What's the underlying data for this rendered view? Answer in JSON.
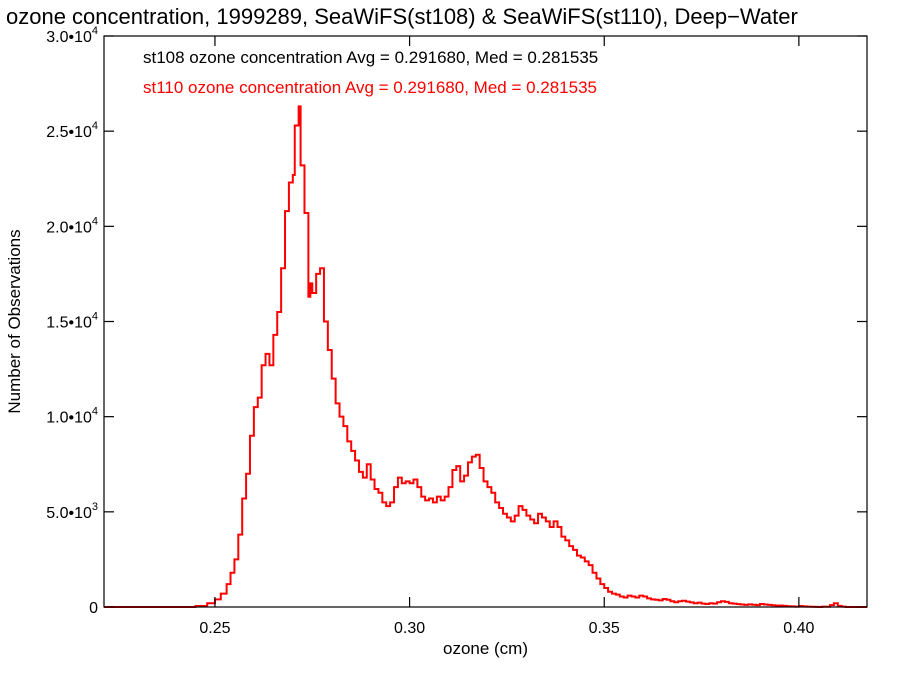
{
  "chart_data": {
    "type": "line",
    "title": "ozone concentration, 1999289, SeaWiFS(st108) & SeaWiFS(st110), Deep−Water",
    "xlabel": "ozone (cm)",
    "ylabel": "Number of Observations",
    "xlim": [
      0.2215,
      0.4175
    ],
    "ylim": [
      0,
      30000
    ],
    "x_ticks": [
      {
        "value": 0.25,
        "label": "0.25"
      },
      {
        "value": 0.3,
        "label": "0.30"
      },
      {
        "value": 0.35,
        "label": "0.35"
      },
      {
        "value": 0.4,
        "label": "0.40"
      }
    ],
    "y_ticks": [
      {
        "value": 0,
        "mantissa": "0",
        "exponent": ""
      },
      {
        "value": 5000,
        "mantissa": "5.0•10",
        "exponent": "3"
      },
      {
        "value": 10000,
        "mantissa": "1.0•10",
        "exponent": "4"
      },
      {
        "value": 15000,
        "mantissa": "1.5•10",
        "exponent": "4"
      },
      {
        "value": 20000,
        "mantissa": "2.0•10",
        "exponent": "4"
      },
      {
        "value": 25000,
        "mantissa": "2.5•10",
        "exponent": "4"
      },
      {
        "value": 30000,
        "mantissa": "3.0•10",
        "exponent": "4"
      }
    ],
    "annotations": [
      {
        "text": "st108 ozone concentration Avg = 0.291680, Med = 0.281535",
        "color": "#000000"
      },
      {
        "text": "st110 ozone concentration Avg = 0.291680, Med = 0.281535",
        "color": "#ff0000"
      }
    ],
    "series": [
      {
        "color": "#ff0000",
        "step": true,
        "points": [
          [
            0.2215,
            0
          ],
          [
            0.235,
            0
          ],
          [
            0.245,
            50
          ],
          [
            0.248,
            200
          ],
          [
            0.25,
            400
          ],
          [
            0.2515,
            700
          ],
          [
            0.253,
            1200
          ],
          [
            0.254,
            1800
          ],
          [
            0.255,
            2500
          ],
          [
            0.256,
            3800
          ],
          [
            0.257,
            5700
          ],
          [
            0.258,
            7000
          ],
          [
            0.259,
            9000
          ],
          [
            0.26,
            10500
          ],
          [
            0.261,
            11000
          ],
          [
            0.262,
            12700
          ],
          [
            0.263,
            13300
          ],
          [
            0.264,
            12700
          ],
          [
            0.265,
            14300
          ],
          [
            0.266,
            15500
          ],
          [
            0.267,
            17800
          ],
          [
            0.268,
            20800
          ],
          [
            0.269,
            22300
          ],
          [
            0.27,
            22700
          ],
          [
            0.2705,
            25300
          ],
          [
            0.2715,
            26300
          ],
          [
            0.272,
            23200
          ],
          [
            0.273,
            20700
          ],
          [
            0.274,
            16300
          ],
          [
            0.2745,
            17000
          ],
          [
            0.275,
            16500
          ],
          [
            0.276,
            17500
          ],
          [
            0.277,
            17800
          ],
          [
            0.278,
            15000
          ],
          [
            0.279,
            13500
          ],
          [
            0.28,
            12000
          ],
          [
            0.281,
            10700
          ],
          [
            0.282,
            10000
          ],
          [
            0.283,
            9500
          ],
          [
            0.284,
            8700
          ],
          [
            0.285,
            8200
          ],
          [
            0.286,
            7700
          ],
          [
            0.287,
            7100
          ],
          [
            0.288,
            6800
          ],
          [
            0.289,
            7500
          ],
          [
            0.29,
            6700
          ],
          [
            0.291,
            6200
          ],
          [
            0.292,
            6000
          ],
          [
            0.293,
            5500
          ],
          [
            0.294,
            5300
          ],
          [
            0.295,
            5500
          ],
          [
            0.296,
            6300
          ],
          [
            0.297,
            6800
          ],
          [
            0.298,
            6500
          ],
          [
            0.299,
            6600
          ],
          [
            0.3,
            6500
          ],
          [
            0.301,
            6700
          ],
          [
            0.302,
            6300
          ],
          [
            0.303,
            5800
          ],
          [
            0.304,
            5600
          ],
          [
            0.305,
            5700
          ],
          [
            0.306,
            5500
          ],
          [
            0.307,
            5800
          ],
          [
            0.308,
            5600
          ],
          [
            0.309,
            5800
          ],
          [
            0.31,
            6300
          ],
          [
            0.311,
            7200
          ],
          [
            0.312,
            7400
          ],
          [
            0.313,
            6600
          ],
          [
            0.314,
            6900
          ],
          [
            0.315,
            7600
          ],
          [
            0.316,
            7900
          ],
          [
            0.317,
            8000
          ],
          [
            0.318,
            7300
          ],
          [
            0.319,
            6600
          ],
          [
            0.32,
            6300
          ],
          [
            0.321,
            6000
          ],
          [
            0.322,
            5500
          ],
          [
            0.323,
            5200
          ],
          [
            0.324,
            4900
          ],
          [
            0.325,
            4700
          ],
          [
            0.326,
            4500
          ],
          [
            0.327,
            4800
          ],
          [
            0.328,
            5300
          ],
          [
            0.329,
            5100
          ],
          [
            0.33,
            4800
          ],
          [
            0.331,
            4600
          ],
          [
            0.332,
            4400
          ],
          [
            0.333,
            4900
          ],
          [
            0.334,
            4700
          ],
          [
            0.335,
            4500
          ],
          [
            0.336,
            4200
          ],
          [
            0.337,
            4500
          ],
          [
            0.338,
            4200
          ],
          [
            0.339,
            3700
          ],
          [
            0.34,
            3500
          ],
          [
            0.341,
            3200
          ],
          [
            0.342,
            3000
          ],
          [
            0.343,
            2700
          ],
          [
            0.344,
            2600
          ],
          [
            0.345,
            2400
          ],
          [
            0.346,
            2200
          ],
          [
            0.347,
            1800
          ],
          [
            0.348,
            1500
          ],
          [
            0.349,
            1200
          ],
          [
            0.35,
            1000
          ],
          [
            0.351,
            800
          ],
          [
            0.352,
            700
          ],
          [
            0.353,
            650
          ],
          [
            0.354,
            550
          ],
          [
            0.355,
            500
          ],
          [
            0.356,
            600
          ],
          [
            0.357,
            550
          ],
          [
            0.358,
            500
          ],
          [
            0.359,
            600
          ],
          [
            0.36,
            550
          ],
          [
            0.361,
            450
          ],
          [
            0.362,
            400
          ],
          [
            0.363,
            380
          ],
          [
            0.364,
            350
          ],
          [
            0.365,
            420
          ],
          [
            0.366,
            380
          ],
          [
            0.367,
            300
          ],
          [
            0.368,
            250
          ],
          [
            0.369,
            300
          ],
          [
            0.37,
            330
          ],
          [
            0.371,
            280
          ],
          [
            0.372,
            240
          ],
          [
            0.373,
            200
          ],
          [
            0.374,
            230
          ],
          [
            0.375,
            180
          ],
          [
            0.376,
            160
          ],
          [
            0.377,
            200
          ],
          [
            0.378,
            180
          ],
          [
            0.379,
            250
          ],
          [
            0.38,
            300
          ],
          [
            0.381,
            270
          ],
          [
            0.382,
            200
          ],
          [
            0.383,
            180
          ],
          [
            0.384,
            150
          ],
          [
            0.385,
            130
          ],
          [
            0.386,
            110
          ],
          [
            0.387,
            140
          ],
          [
            0.388,
            120
          ],
          [
            0.389,
            100
          ],
          [
            0.39,
            160
          ],
          [
            0.391,
            130
          ],
          [
            0.392,
            110
          ],
          [
            0.393,
            90
          ],
          [
            0.394,
            70
          ],
          [
            0.395,
            80
          ],
          [
            0.396,
            60
          ],
          [
            0.397,
            40
          ],
          [
            0.398,
            30
          ],
          [
            0.399,
            20
          ],
          [
            0.4,
            50
          ],
          [
            0.401,
            30
          ],
          [
            0.402,
            20
          ],
          [
            0.403,
            10
          ],
          [
            0.404,
            5
          ],
          [
            0.405,
            0
          ],
          [
            0.406,
            20
          ],
          [
            0.407,
            10
          ],
          [
            0.408,
            100
          ],
          [
            0.409,
            200
          ],
          [
            0.41,
            60
          ],
          [
            0.411,
            20
          ],
          [
            0.412,
            0
          ],
          [
            0.4175,
            0
          ]
        ]
      }
    ]
  }
}
